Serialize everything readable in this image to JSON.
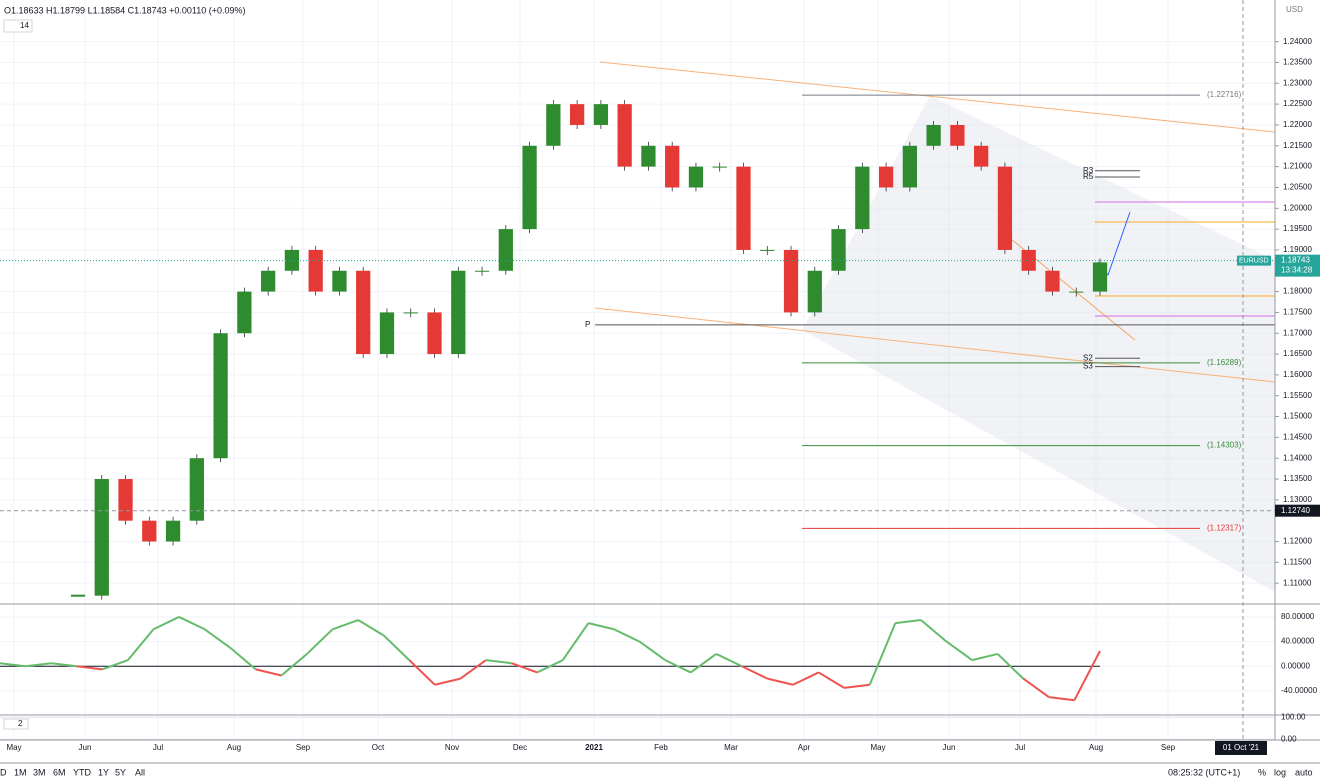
{
  "header": {
    "ohlc": "O1.18633 H1.18799 L1.18584 C1.18743 +0.00110 (+0.09%)",
    "input": "14",
    "currency": "USD"
  },
  "toolbar": {
    "ranges": [
      "D",
      "1M",
      "3M",
      "6M",
      "YTD",
      "1Y",
      "5Y",
      "All"
    ],
    "clock": "08:25:32 (UTC+1)",
    "percent": "%",
    "log": "log",
    "auto": "auto"
  },
  "chart_data": [
    {
      "type": "candlestick",
      "symbol": "EURUSD",
      "x_labels": [
        "May",
        "Jun",
        "Jul",
        "Aug",
        "Sep",
        "Oct",
        "Nov",
        "Dec",
        "2021",
        "Feb",
        "Mar",
        "Apr",
        "May",
        "Jun",
        "Jul",
        "Aug",
        "Sep"
      ],
      "cursor_date": "01 Oct '21",
      "values": [
        1.107,
        1.135,
        1.125,
        1.12,
        1.125,
        1.14,
        1.17,
        1.18,
        1.185,
        1.19,
        1.18,
        1.185,
        1.165,
        1.175,
        1.175,
        1.165,
        1.185,
        1.185,
        1.195,
        1.215,
        1.225,
        1.22,
        1.225,
        1.21,
        1.215,
        1.205,
        1.21,
        1.21,
        1.19,
        1.19,
        1.175,
        1.185,
        1.195,
        1.21,
        1.205,
        1.215,
        1.22,
        1.215,
        1.21,
        1.19,
        1.185,
        1.18,
        1.18,
        1.187
      ],
      "up_color": "#26a69a",
      "bull_color": "#2e8b2e",
      "bear_color": "#e53935",
      "last_price": {
        "value": 1.18743,
        "label": "1.18743"
      },
      "countdown": "13:34:28",
      "crosshair": {
        "value": 1.1274,
        "label": "1.12740"
      },
      "levels": [
        {
          "value": 1.22716,
          "label": "(1.22716)",
          "color": "#787b86"
        },
        {
          "value": 1.16289,
          "label": "(1.16289)",
          "color": "#388e3c"
        },
        {
          "value": 1.14303,
          "label": "(1.14303)",
          "color": "#388e3c"
        },
        {
          "value": 1.12317,
          "label": "(1.12317)",
          "color": "#e53935"
        }
      ],
      "pivots": [
        {
          "name": "P",
          "value": 1.172
        },
        {
          "name": "R3",
          "value": 1.209
        },
        {
          "name": "R5",
          "value": 1.2075
        },
        {
          "name": "S2",
          "value": 1.164
        },
        {
          "name": "S3",
          "value": 1.162
        }
      ],
      "ylim": [
        1.105,
        1.25
      ],
      "yticks": [
        {
          "value": 1.24,
          "label": "1.24000"
        },
        {
          "value": 1.235,
          "label": "1.23500"
        },
        {
          "value": 1.23,
          "label": "1.23000"
        },
        {
          "value": 1.225,
          "label": "1.22500"
        },
        {
          "value": 1.22,
          "label": "1.22000"
        },
        {
          "value": 1.215,
          "label": "1.21500"
        },
        {
          "value": 1.21,
          "label": "1.21000"
        },
        {
          "value": 1.205,
          "label": "1.20500"
        },
        {
          "value": 1.2,
          "label": "1.20000"
        },
        {
          "value": 1.195,
          "label": "1.19500"
        },
        {
          "value": 1.19,
          "label": "1.19000"
        },
        {
          "value": 1.18,
          "label": "1.18000"
        },
        {
          "value": 1.175,
          "label": "1.17500"
        },
        {
          "value": 1.17,
          "label": "1.17000"
        },
        {
          "value": 1.165,
          "label": "1.16500"
        },
        {
          "value": 1.16,
          "label": "1.16000"
        },
        {
          "value": 1.155,
          "label": "1.15500"
        },
        {
          "value": 1.15,
          "label": "1.15000"
        },
        {
          "value": 1.145,
          "label": "1.14500"
        },
        {
          "value": 1.14,
          "label": "1.14000"
        },
        {
          "value": 1.135,
          "label": "1.13500"
        },
        {
          "value": 1.13,
          "label": "1.13000"
        },
        {
          "value": 1.12,
          "label": "1.12000"
        },
        {
          "value": 1.115,
          "label": "1.11500"
        },
        {
          "value": 1.11,
          "label": "1.11000"
        }
      ]
    },
    {
      "type": "oscillator",
      "pos_color": "#66bb6a",
      "neg_color": "#ef5350",
      "values": [
        5,
        0,
        5,
        0,
        -5,
        10,
        60,
        80,
        60,
        30,
        -5,
        -15,
        20,
        60,
        75,
        50,
        10,
        -30,
        -20,
        10,
        5,
        -10,
        10,
        70,
        60,
        40,
        10,
        -10,
        20,
        0,
        -20,
        -30,
        -10,
        -35,
        -30,
        70,
        75,
        40,
        10,
        20,
        -20,
        -50,
        -55,
        25
      ],
      "ylim": [
        -79,
        101
      ],
      "yticks": [
        {
          "value": 80,
          "label": "80.00000"
        },
        {
          "value": 40,
          "label": "40.00000"
        },
        {
          "value": 0,
          "label": "0.00000"
        },
        {
          "value": -40,
          "label": "-40.00000"
        }
      ]
    },
    {
      "type": "stochastic",
      "input": "2",
      "ylim": [
        -3,
        110
      ],
      "yticks": [
        {
          "value": 100,
          "label": "100.00"
        },
        {
          "value": 0,
          "label": "0.00"
        }
      ]
    }
  ]
}
